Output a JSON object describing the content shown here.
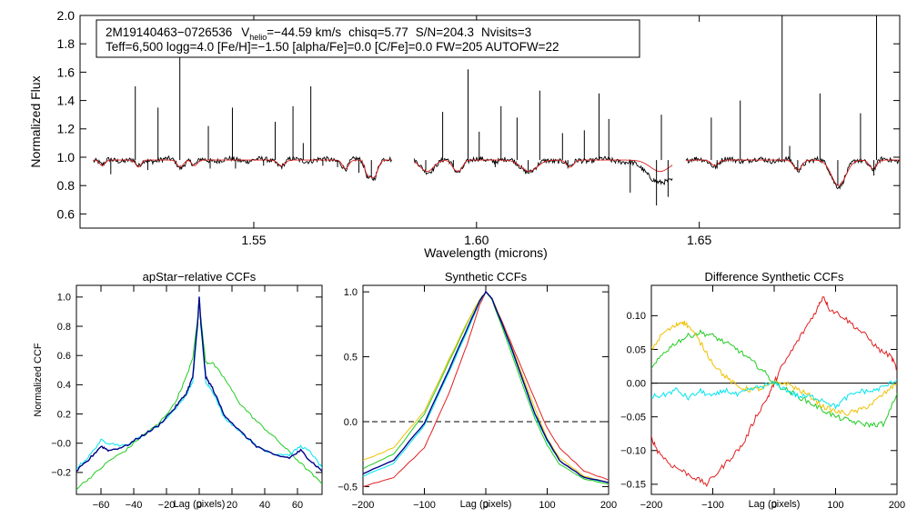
{
  "colors": {
    "spectrum": "#000000",
    "model": "#e02020",
    "ccf_main": "#00008b",
    "ccf_cyan": "#00e5ee",
    "ccf_green": "#22cc22",
    "ccf_yellow": "#f0c000",
    "ccf_red": "#e02020",
    "axis": "#000000"
  },
  "chart_data": [
    {
      "id": "spectrum",
      "type": "line",
      "title": "",
      "xlabel": "Wavelength (microns)",
      "ylabel": "Normalized Flux",
      "xlim": [
        1.511,
        1.695
      ],
      "ylim": [
        0.5,
        2.0
      ],
      "xticks": [
        {
          "v": 1.55,
          "label": "1.55"
        },
        {
          "v": 1.6,
          "label": "1.60"
        },
        {
          "v": 1.65,
          "label": "1.65"
        }
      ],
      "yticks": [
        {
          "v": 0.6,
          "label": "0.6"
        },
        {
          "v": 0.8,
          "label": "0.8"
        },
        {
          "v": 1.0,
          "label": "1.0"
        },
        {
          "v": 1.2,
          "label": "1.2"
        },
        {
          "v": 1.4,
          "label": "1.4"
        },
        {
          "v": 1.6,
          "label": "1.6"
        },
        {
          "v": 1.8,
          "label": "1.8"
        },
        {
          "v": 2.0,
          "label": "2.0"
        }
      ],
      "info_box": {
        "line1_id": "2M19140463−0726536",
        "vhelio_label": "V",
        "vhelio_sub": "helio",
        "vhelio_value": "=−44.59 km/s",
        "chisq": "chisq=5.77",
        "snr": "S/N=204.3",
        "nvisits": "Nvisits=3",
        "line2": "Teff=6,500 logg=4.0 [Fe/H]=−1.50 [alpha/Fe]=0.0 [C/Fe]=0.0 FW=205 AUTOFW=22"
      },
      "chip_ranges": [
        [
          1.514,
          1.581
        ],
        [
          1.586,
          1.644
        ],
        [
          1.647,
          1.696
        ]
      ],
      "continuum": 0.98,
      "emission_lines": [
        {
          "x": 1.5234,
          "y": 1.5
        },
        {
          "x": 1.5285,
          "y": 1.35
        },
        {
          "x": 1.5334,
          "y": 1.92
        },
        {
          "x": 1.5398,
          "y": 1.22
        },
        {
          "x": 1.5452,
          "y": 1.35
        },
        {
          "x": 1.5548,
          "y": 1.25
        },
        {
          "x": 1.5588,
          "y": 1.36
        },
        {
          "x": 1.5611,
          "y": 1.1
        },
        {
          "x": 1.5628,
          "y": 1.5
        },
        {
          "x": 1.5924,
          "y": 1.32
        },
        {
          "x": 1.5981,
          "y": 1.62
        },
        {
          "x": 1.6006,
          "y": 1.18
        },
        {
          "x": 1.6055,
          "y": 1.36
        },
        {
          "x": 1.6091,
          "y": 1.28
        },
        {
          "x": 1.6142,
          "y": 1.47
        },
        {
          "x": 1.6193,
          "y": 1.17
        },
        {
          "x": 1.6242,
          "y": 1.19
        },
        {
          "x": 1.6275,
          "y": 1.45
        },
        {
          "x": 1.6297,
          "y": 1.27
        },
        {
          "x": 1.6415,
          "y": 1.3
        },
        {
          "x": 1.6527,
          "y": 1.28
        },
        {
          "x": 1.6592,
          "y": 1.4
        },
        {
          "x": 1.6686,
          "y": 2.0
        },
        {
          "x": 1.6703,
          "y": 1.08
        },
        {
          "x": 1.6771,
          "y": 1.45
        },
        {
          "x": 1.6862,
          "y": 1.31
        },
        {
          "x": 1.6898,
          "y": 2.0
        }
      ],
      "absorption_lines": [
        {
          "x": 1.5179,
          "y": 0.88
        },
        {
          "x": 1.5262,
          "y": 0.91
        },
        {
          "x": 1.5402,
          "y": 0.92
        },
        {
          "x": 1.5459,
          "y": 0.92
        },
        {
          "x": 1.5522,
          "y": 0.94
        },
        {
          "x": 1.5655,
          "y": 0.94
        },
        {
          "x": 1.5688,
          "y": 0.93
        },
        {
          "x": 1.5736,
          "y": 0.89
        },
        {
          "x": 1.5764,
          "y": 0.86
        },
        {
          "x": 1.5886,
          "y": 0.91
        },
        {
          "x": 1.5948,
          "y": 0.93
        },
        {
          "x": 1.6042,
          "y": 0.93
        },
        {
          "x": 1.6116,
          "y": 0.9
        },
        {
          "x": 1.6205,
          "y": 0.92
        },
        {
          "x": 1.6345,
          "y": 0.75
        },
        {
          "x": 1.6404,
          "y": 0.66
        },
        {
          "x": 1.643,
          "y": 0.72
        },
        {
          "x": 1.654,
          "y": 0.92
        },
        {
          "x": 1.6721,
          "y": 0.91
        },
        {
          "x": 1.6811,
          "y": 0.8
        },
        {
          "x": 1.6892,
          "y": 0.87
        }
      ],
      "model_dips": [
        {
          "x": 1.516,
          "d": 0.04,
          "w": 0.0006
        },
        {
          "x": 1.5241,
          "d": 0.05,
          "w": 0.0006
        },
        {
          "x": 1.5335,
          "d": 0.05,
          "w": 0.0007
        },
        {
          "x": 1.5367,
          "d": 0.04,
          "w": 0.0006
        },
        {
          "x": 1.5562,
          "d": 0.04,
          "w": 0.0008
        },
        {
          "x": 1.5706,
          "d": 0.06,
          "w": 0.0007
        },
        {
          "x": 1.5755,
          "d": 0.09,
          "w": 0.0006
        },
        {
          "x": 1.577,
          "d": 0.12,
          "w": 0.0008
        },
        {
          "x": 1.5889,
          "d": 0.08,
          "w": 0.0015
        },
        {
          "x": 1.5952,
          "d": 0.06,
          "w": 0.0008
        },
        {
          "x": 1.5964,
          "d": 0.05,
          "w": 0.0007
        },
        {
          "x": 1.6118,
          "d": 0.08,
          "w": 0.0018
        },
        {
          "x": 1.621,
          "d": 0.05,
          "w": 0.0008
        },
        {
          "x": 1.6412,
          "d": 0.08,
          "w": 0.0022
        },
        {
          "x": 1.6535,
          "d": 0.04,
          "w": 0.0008
        },
        {
          "x": 1.6721,
          "d": 0.07,
          "w": 0.0009
        },
        {
          "x": 1.6813,
          "d": 0.18,
          "w": 0.0016
        },
        {
          "x": 1.689,
          "d": 0.06,
          "w": 0.0008
        }
      ]
    },
    {
      "id": "apstar_ccf",
      "type": "line",
      "title": "apStar−relative CCFs",
      "xlabel": "Lag (pixels)",
      "ylabel": "Normalized CCF",
      "xlim": [
        -75,
        75
      ],
      "ylim": [
        -0.35,
        1.08
      ],
      "xticks": [
        {
          "v": -60,
          "label": "−60"
        },
        {
          "v": -40,
          "label": "−40"
        },
        {
          "v": -20,
          "label": "−20"
        },
        {
          "v": 0,
          "label": "0"
        },
        {
          "v": 20,
          "label": "20"
        },
        {
          "v": 40,
          "label": "40"
        },
        {
          "v": 60,
          "label": "60"
        }
      ],
      "yticks": [
        {
          "v": -0.2,
          "label": "−0.2"
        },
        {
          "v": 0.0,
          "label": "−0.0"
        },
        {
          "v": 0.2,
          "label": "0.2"
        },
        {
          "v": 0.4,
          "label": "0.4"
        },
        {
          "v": 0.6,
          "label": "0.6"
        },
        {
          "v": 0.8,
          "label": "0.8"
        },
        {
          "v": 1.0,
          "label": "1.0"
        }
      ],
      "hlines": [],
      "series": [
        {
          "name": "green",
          "color": "#22cc22",
          "x": [
            -75,
            -65,
            -55,
            -45,
            -35,
            -25,
            -15,
            -8,
            -4,
            -1,
            0,
            1,
            4,
            8,
            15,
            25,
            35,
            45,
            55,
            65,
            75
          ],
          "y": [
            -0.31,
            -0.22,
            -0.12,
            -0.05,
            0.05,
            0.13,
            0.27,
            0.45,
            0.58,
            0.85,
            1.0,
            0.85,
            0.55,
            0.55,
            0.45,
            0.27,
            0.15,
            0.05,
            -0.06,
            -0.17,
            -0.28
          ]
        },
        {
          "name": "cyan",
          "color": "#00e5ee",
          "x": [
            -75,
            -68,
            -60,
            -55,
            -45,
            -35,
            -25,
            -15,
            -8,
            -4,
            -1,
            0,
            1,
            4,
            8,
            15,
            25,
            35,
            45,
            55,
            62,
            68,
            75
          ],
          "y": [
            -0.17,
            -0.1,
            0.02,
            0.0,
            -0.02,
            0.05,
            0.12,
            0.23,
            0.33,
            0.42,
            0.8,
            1.0,
            0.8,
            0.42,
            0.36,
            0.18,
            0.08,
            -0.02,
            -0.07,
            -0.08,
            -0.02,
            -0.06,
            -0.17
          ]
        },
        {
          "name": "navy",
          "color": "#00008b",
          "x": [
            -75,
            -68,
            -60,
            -55,
            -45,
            -35,
            -25,
            -15,
            -8,
            -4,
            -1,
            0,
            1,
            4,
            8,
            15,
            25,
            35,
            45,
            55,
            62,
            68,
            75
          ],
          "y": [
            -0.19,
            -0.12,
            -0.02,
            -0.05,
            -0.02,
            0.05,
            0.12,
            0.24,
            0.34,
            0.45,
            0.82,
            1.0,
            0.82,
            0.45,
            0.38,
            0.2,
            0.08,
            -0.02,
            -0.08,
            -0.1,
            -0.05,
            -0.12,
            -0.19
          ]
        }
      ]
    },
    {
      "id": "synthetic_ccf",
      "type": "line",
      "title": "Synthetic CCFs",
      "xlabel": "Lag (pixels)",
      "ylabel": "",
      "xlim": [
        -200,
        200
      ],
      "ylim": [
        -0.56,
        1.05
      ],
      "xticks": [
        {
          "v": -200,
          "label": "−200"
        },
        {
          "v": -100,
          "label": "−100"
        },
        {
          "v": 0,
          "label": "0"
        },
        {
          "v": 100,
          "label": "100"
        },
        {
          "v": 200,
          "label": "200"
        }
      ],
      "yticks": [
        {
          "v": -0.5,
          "label": "−0.5"
        },
        {
          "v": 0.0,
          "label": "0.0"
        },
        {
          "v": 0.5,
          "label": "0.5"
        },
        {
          "v": 1.0,
          "label": "1.0"
        }
      ],
      "hlines": [
        {
          "y": 0.0,
          "style": "dashed",
          "color": "#000000"
        }
      ],
      "series": [
        {
          "name": "red",
          "color": "#e02020",
          "x": [
            -200,
            -150,
            -100,
            -60,
            -30,
            -10,
            0,
            10,
            40,
            80,
            100,
            120,
            160,
            200
          ],
          "y": [
            -0.5,
            -0.43,
            -0.2,
            0.22,
            0.6,
            0.9,
            1.0,
            0.95,
            0.62,
            0.17,
            -0.05,
            -0.2,
            -0.38,
            -0.45
          ]
        },
        {
          "name": "green",
          "color": "#22cc22",
          "x": [
            -200,
            -150,
            -100,
            -60,
            -30,
            -10,
            0,
            10,
            40,
            80,
            100,
            120,
            160,
            200
          ],
          "y": [
            -0.36,
            -0.25,
            0.06,
            0.46,
            0.76,
            0.94,
            1.0,
            0.94,
            0.55,
            0.02,
            -0.18,
            -0.33,
            -0.44,
            -0.48
          ]
        },
        {
          "name": "yellow",
          "color": "#f0c000",
          "x": [
            -200,
            -150,
            -100,
            -60,
            -30,
            -10,
            0,
            10,
            40,
            80,
            100,
            120,
            160,
            200
          ],
          "y": [
            -0.3,
            -0.2,
            0.08,
            0.48,
            0.77,
            0.94,
            1.0,
            0.95,
            0.6,
            0.1,
            -0.13,
            -0.28,
            -0.42,
            -0.47
          ]
        },
        {
          "name": "cyan",
          "color": "#00e5ee",
          "x": [
            -200,
            -150,
            -100,
            -60,
            -30,
            -10,
            0,
            10,
            40,
            80,
            100,
            120,
            160,
            200
          ],
          "y": [
            -0.42,
            -0.32,
            -0.03,
            0.38,
            0.7,
            0.92,
            1.0,
            0.95,
            0.58,
            0.05,
            -0.15,
            -0.3,
            -0.43,
            -0.47
          ]
        },
        {
          "name": "navy",
          "color": "#00008b",
          "x": [
            -200,
            -150,
            -100,
            -60,
            -30,
            -10,
            0,
            10,
            40,
            80,
            100,
            120,
            160,
            200
          ],
          "y": [
            -0.4,
            -0.3,
            -0.01,
            0.4,
            0.72,
            0.93,
            1.0,
            0.95,
            0.59,
            0.06,
            -0.14,
            -0.3,
            -0.43,
            -0.47
          ]
        }
      ]
    },
    {
      "id": "difference_ccf",
      "type": "line",
      "title": "Difference Synthetic CCFs",
      "xlabel": "Lag (pixels)",
      "ylabel": "",
      "xlim": [
        -200,
        200
      ],
      "ylim": [
        -0.165,
        0.145
      ],
      "xticks": [
        {
          "v": -200,
          "label": "−200"
        },
        {
          "v": -100,
          "label": "−100"
        },
        {
          "v": 0,
          "label": "0"
        },
        {
          "v": 100,
          "label": "100"
        },
        {
          "v": 200,
          "label": "200"
        }
      ],
      "yticks": [
        {
          "v": -0.15,
          "label": "−0.15"
        },
        {
          "v": -0.1,
          "label": "−0.10"
        },
        {
          "v": -0.05,
          "label": "−0.05"
        },
        {
          "v": 0.0,
          "label": "0.00"
        },
        {
          "v": 0.05,
          "label": "0.05"
        },
        {
          "v": 0.1,
          "label": "0.10"
        }
      ],
      "hlines": [
        {
          "y": 0.0,
          "style": "solid",
          "color": "#000000"
        }
      ],
      "series": [
        {
          "name": "red",
          "color": "#e02020",
          "x": [
            -200,
            -190,
            -170,
            -150,
            -130,
            -110,
            -90,
            -70,
            -50,
            -30,
            -10,
            0,
            10,
            30,
            50,
            70,
            80,
            90,
            110,
            130,
            150,
            170,
            190,
            200
          ],
          "y": [
            -0.08,
            -0.1,
            -0.12,
            -0.13,
            -0.14,
            -0.15,
            -0.13,
            -0.11,
            -0.09,
            -0.05,
            -0.02,
            0.0,
            0.02,
            0.05,
            0.08,
            0.11,
            0.13,
            0.11,
            0.1,
            0.085,
            0.07,
            0.05,
            0.04,
            0.02
          ]
        },
        {
          "name": "green",
          "color": "#22cc22",
          "x": [
            -200,
            -180,
            -160,
            -140,
            -120,
            -100,
            -80,
            -60,
            -40,
            -20,
            0,
            20,
            40,
            60,
            80,
            100,
            120,
            140,
            160,
            180,
            200
          ],
          "y": [
            0.02,
            0.045,
            0.06,
            0.07,
            0.075,
            0.07,
            0.06,
            0.05,
            0.035,
            0.02,
            0.0,
            -0.01,
            -0.02,
            -0.03,
            -0.04,
            -0.05,
            -0.055,
            -0.06,
            -0.062,
            -0.06,
            -0.015
          ]
        },
        {
          "name": "yellow",
          "color": "#f0c000",
          "x": [
            -200,
            -180,
            -160,
            -150,
            -140,
            -120,
            -100,
            -80,
            -60,
            -40,
            -20,
            0,
            20,
            40,
            60,
            80,
            100,
            120,
            140,
            160,
            180,
            200
          ],
          "y": [
            0.05,
            0.075,
            0.085,
            0.092,
            0.085,
            0.06,
            0.03,
            0.01,
            -0.005,
            -0.01,
            -0.008,
            0.0,
            0.0,
            -0.01,
            -0.02,
            -0.035,
            -0.042,
            -0.045,
            -0.04,
            -0.03,
            -0.015,
            0.0
          ]
        },
        {
          "name": "cyan",
          "color": "#00e5ee",
          "x": [
            -200,
            -180,
            -160,
            -140,
            -120,
            -100,
            -80,
            -60,
            -40,
            -20,
            0,
            20,
            40,
            60,
            80,
            100,
            120,
            140,
            160,
            180,
            200
          ],
          "y": [
            -0.02,
            -0.018,
            -0.01,
            -0.022,
            -0.012,
            -0.02,
            -0.01,
            -0.018,
            -0.01,
            -0.005,
            0.0,
            -0.01,
            -0.02,
            -0.02,
            -0.025,
            -0.035,
            -0.02,
            -0.012,
            -0.012,
            -0.005,
            0.005
          ]
        }
      ]
    }
  ]
}
